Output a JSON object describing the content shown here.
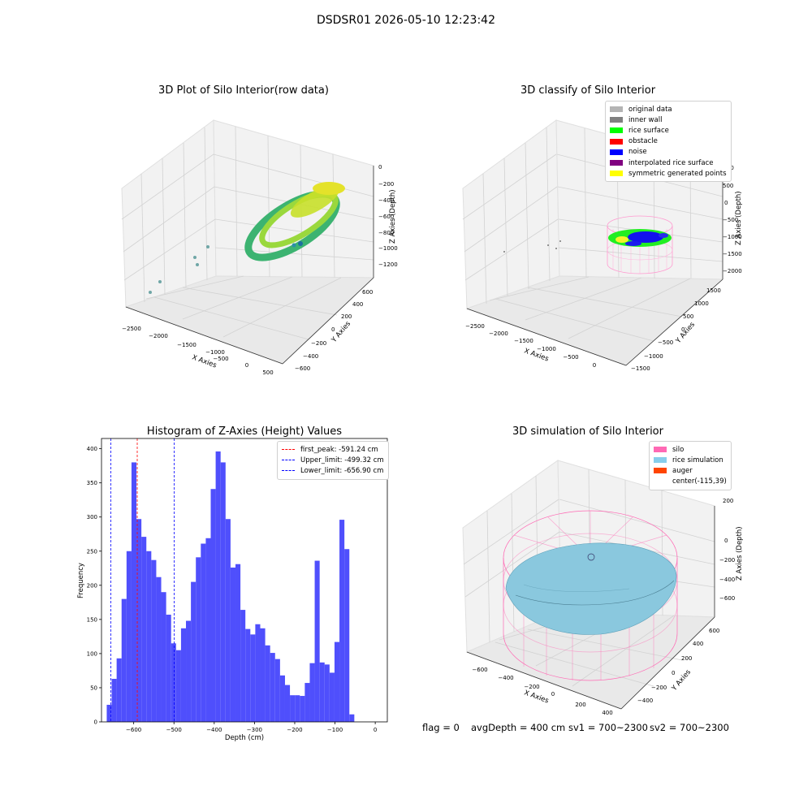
{
  "figure": {
    "suptitle": "DSDSR01 2026-05-10 12:23:42",
    "footer": {
      "flag": "flag = 0",
      "avg_depth": "avgDepth = 400 cm",
      "sv1": "sv1 = 700~2300",
      "sv2": "sv2 = 700~2300"
    }
  },
  "panels": {
    "raw": {
      "title": "3D Plot of Silo Interior(row data)",
      "xlabel": "X Axies",
      "ylabel": "Y Axies",
      "zlabel": "Z Axies (Depth)",
      "xticks": [
        "−2500",
        "−2000",
        "−1500",
        "−1000",
        "−500",
        "0",
        "500"
      ],
      "yticks": [
        "−600",
        "−400",
        "−200",
        "0",
        "200",
        "400",
        "600"
      ],
      "zticks": [
        "0",
        "−200",
        "−400",
        "−600",
        "−800",
        "−1000",
        "−1200"
      ]
    },
    "classify": {
      "title": "3D classify of Silo Interior",
      "xlabel": "X Axies",
      "ylabel": "Y Axies",
      "zlabel": "Z Axies (Depth)",
      "xticks": [
        "−2500",
        "−2000",
        "−1500",
        "−1000",
        "−500",
        "0"
      ],
      "yticks": [
        "−1500",
        "−1000",
        "−500",
        "0",
        "500",
        "1000",
        "1500"
      ],
      "zticks": [
        "1000",
        "500",
        "0",
        "−500",
        "−1000",
        "−1500",
        "−2000"
      ],
      "legend": [
        {
          "label": "original data",
          "color": "#b4b4b4"
        },
        {
          "label": "inner wall",
          "color": "#808080"
        },
        {
          "label": "rice surface",
          "color": "#00ff00"
        },
        {
          "label": "obstacle",
          "color": "#ff0000"
        },
        {
          "label": "noise",
          "color": "#0000ff"
        },
        {
          "label": "interpolated rice surface",
          "color": "#800080"
        },
        {
          "label": "symmetric generated points",
          "color": "#ffff00"
        }
      ]
    },
    "simulation": {
      "title": "3D simulation of Silo Interior",
      "xlabel": "X Axies",
      "ylabel": "Y Axies",
      "zlabel": "Z Axies (Depth)",
      "xticks": [
        "−600",
        "−400",
        "−200",
        "0",
        "200",
        "400"
      ],
      "yticks": [
        "−400",
        "−200",
        "0",
        "200",
        "400",
        "600"
      ],
      "zticks": [
        "200",
        "0",
        "−200",
        "−400",
        "−600"
      ],
      "legend": [
        {
          "label": "silo",
          "color": "#ff69b4"
        },
        {
          "label": "rice simulation",
          "color": "#87ceeb"
        },
        {
          "label": "auger",
          "color": "#ff4500"
        },
        {
          "label": "center(-115,39)",
          "color": ""
        }
      ]
    }
  },
  "chart_data": {
    "type": "bar",
    "title": "Histogram of Z-Axies (Height) Values",
    "xlabel": "Depth (cm)",
    "ylabel": "Frequency",
    "xlim": [
      -680,
      30
    ],
    "ylim": [
      0,
      415
    ],
    "xticks": [
      -600,
      -500,
      -400,
      -300,
      -200,
      -100,
      0
    ],
    "yticks": [
      0,
      50,
      100,
      150,
      200,
      250,
      300,
      350,
      400
    ],
    "bin_start": -667,
    "bin_width": 12.3,
    "values": [
      25,
      63,
      93,
      180,
      250,
      380,
      297,
      271,
      250,
      237,
      212,
      190,
      157,
      115,
      105,
      137,
      148,
      205,
      241,
      261,
      269,
      341,
      396,
      380,
      297,
      226,
      231,
      164,
      136,
      128,
      143,
      137,
      112,
      101,
      92,
      68,
      54,
      39,
      39,
      38,
      57,
      86,
      236,
      87,
      84,
      72,
      117,
      296,
      253,
      11
    ],
    "bar_color": "#4f4ffc",
    "lines": [
      {
        "label": "first_peak: -591.24 cm",
        "x": -591.24,
        "color": "#ff0000"
      },
      {
        "label": "Upper_limit: -499.32 cm",
        "x": -499.32,
        "color": "#0000ff"
      },
      {
        "label": "Lower_limit: -656.90 cm",
        "x": -656.9,
        "color": "#0000ff"
      }
    ]
  }
}
